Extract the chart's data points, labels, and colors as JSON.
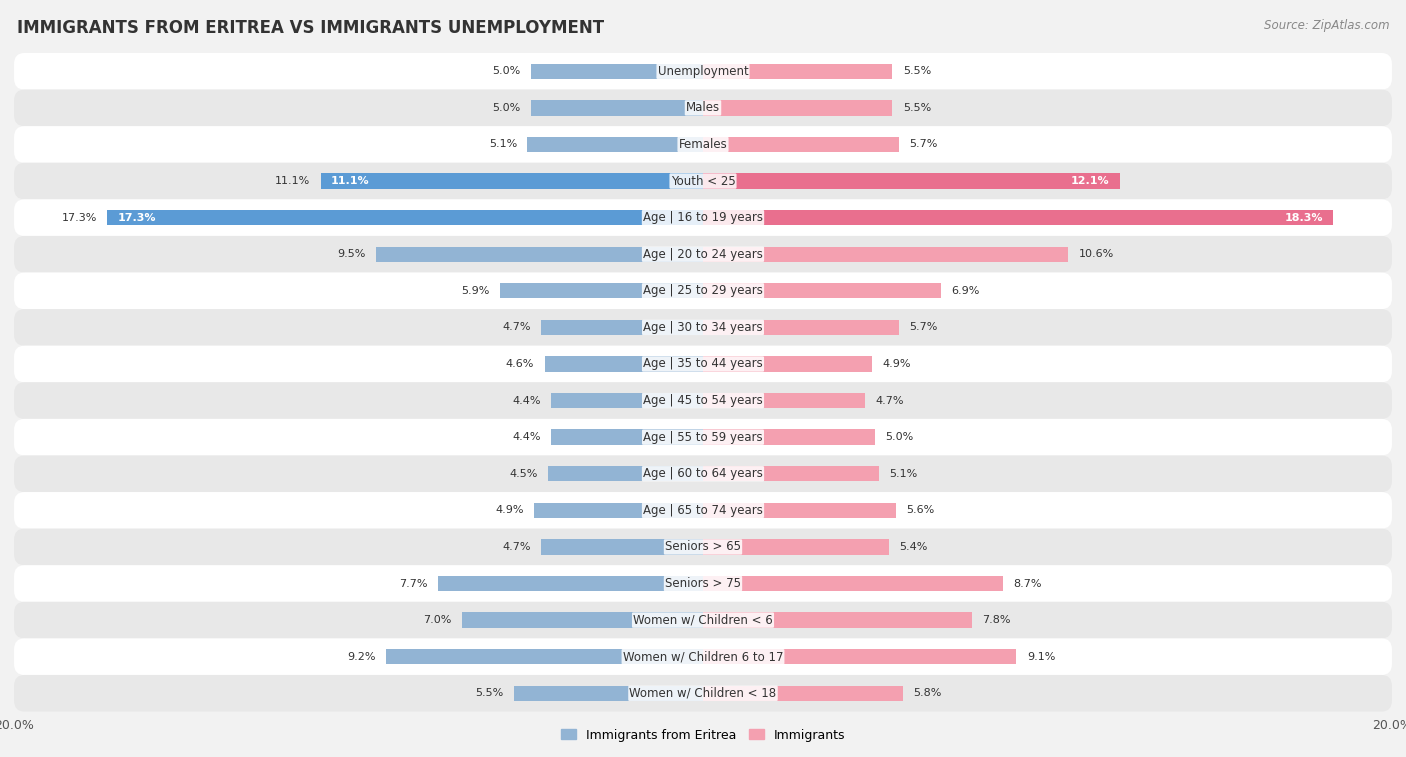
{
  "title": "IMMIGRANTS FROM ERITREA VS IMMIGRANTS UNEMPLOYMENT",
  "source": "Source: ZipAtlas.com",
  "categories": [
    "Unemployment",
    "Males",
    "Females",
    "Youth < 25",
    "Age | 16 to 19 years",
    "Age | 20 to 24 years",
    "Age | 25 to 29 years",
    "Age | 30 to 34 years",
    "Age | 35 to 44 years",
    "Age | 45 to 54 years",
    "Age | 55 to 59 years",
    "Age | 60 to 64 years",
    "Age | 65 to 74 years",
    "Seniors > 65",
    "Seniors > 75",
    "Women w/ Children < 6",
    "Women w/ Children 6 to 17",
    "Women w/ Children < 18"
  ],
  "eritrea_values": [
    5.0,
    5.0,
    5.1,
    11.1,
    17.3,
    9.5,
    5.9,
    4.7,
    4.6,
    4.4,
    4.4,
    4.5,
    4.9,
    4.7,
    7.7,
    7.0,
    9.2,
    5.5
  ],
  "immigrants_values": [
    5.5,
    5.5,
    5.7,
    12.1,
    18.3,
    10.6,
    6.9,
    5.7,
    4.9,
    4.7,
    5.0,
    5.1,
    5.6,
    5.4,
    8.7,
    7.8,
    9.1,
    5.8
  ],
  "eritrea_color": "#92b4d4",
  "immigrants_color": "#f4a0b0",
  "bar_height": 0.42,
  "max_val": 20.0,
  "bg_color": "#f2f2f2",
  "row_light_color": "#ffffff",
  "row_dark_color": "#e8e8e8",
  "title_fontsize": 12,
  "label_fontsize": 8.5,
  "value_fontsize": 8.0,
  "legend_fontsize": 9,
  "highlight_indices": [
    3,
    4
  ],
  "highlight_eritrea_color": "#5b9bd5",
  "highlight_immigrants_color": "#e96f8e"
}
